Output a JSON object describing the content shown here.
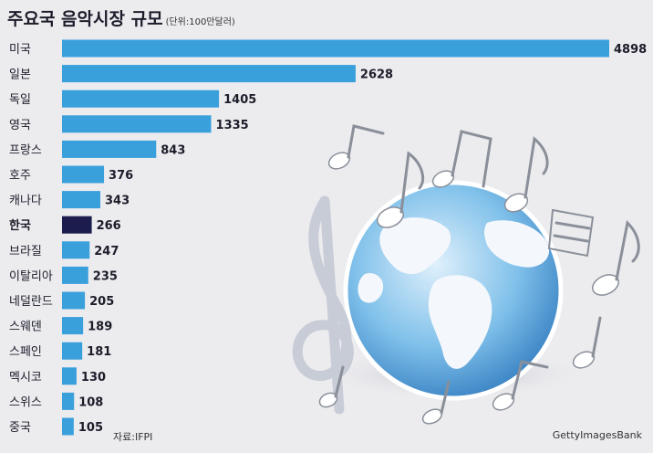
{
  "header": {
    "title": "주요국 음악시장 규모",
    "unit": "(단위:100만달러)"
  },
  "footer": {
    "source": "자료:IFPI",
    "credit": "GettyImagesBank"
  },
  "colors": {
    "bar": "#3aa0dc",
    "highlight_bar": "#1c1c4e",
    "text": "#1c1c2a",
    "background": "#ececef"
  },
  "illustration": {
    "icons": [
      "globe-icon",
      "treble-clef-icon",
      "music-note-icon"
    ]
  },
  "chart_data": {
    "type": "bar",
    "orientation": "horizontal",
    "categories": [
      "미국",
      "일본",
      "독일",
      "영국",
      "프랑스",
      "호주",
      "캐나다",
      "한국",
      "브라질",
      "이탈리아",
      "네덜란드",
      "스웨덴",
      "스페인",
      "멕시코",
      "스위스",
      "중국"
    ],
    "values": [
      4898,
      2628,
      1405,
      1335,
      843,
      376,
      343,
      266,
      247,
      235,
      205,
      189,
      181,
      130,
      108,
      105
    ],
    "highlight": "한국",
    "xlim": [
      0,
      4898
    ],
    "grid": false,
    "legend": "none"
  }
}
